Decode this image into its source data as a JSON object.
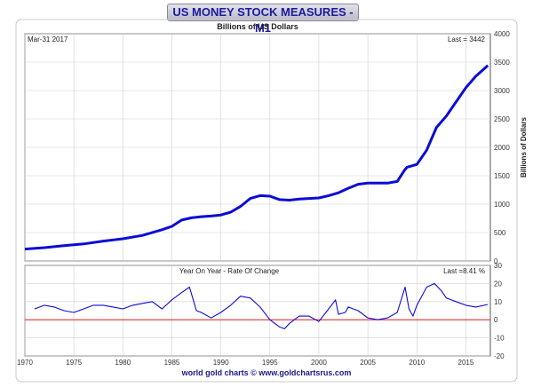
{
  "title": "US MONEY STOCK MEASURES - M1",
  "footer": "world gold charts © www.goldchartsrus.com",
  "colors": {
    "line": "#0b0bd6",
    "zero_line": "#e11a1a",
    "grid": "#d0d0d0",
    "axis_text": "#333333"
  },
  "chart_data": [
    {
      "type": "line",
      "subtitle": "Billions of US Dollars",
      "date_label": "Mar-31  2017",
      "last_label": "Last = 3442",
      "ylabel": "Billions of Dollars",
      "xlim": [
        1970,
        2017.5
      ],
      "ylim": [
        0,
        4000
      ],
      "yticks": [
        0,
        500,
        1000,
        1500,
        2000,
        2500,
        3000,
        3500,
        4000
      ],
      "grid": true,
      "series": [
        {
          "x": [
            1970,
            1972,
            1974,
            1976,
            1978,
            1980,
            1982,
            1984,
            1985,
            1986,
            1987,
            1988,
            1989,
            1990,
            1991,
            1992,
            1993,
            1994,
            1995,
            1996,
            1997,
            1998,
            1999,
            2000,
            2001,
            2002,
            2003,
            2004,
            2005,
            2006,
            2007,
            2008,
            2008.75,
            2009,
            2010,
            2011,
            2011.5,
            2012,
            2013,
            2014,
            2015,
            2016,
            2017.25
          ],
          "values": [
            210,
            235,
            270,
            300,
            350,
            390,
            450,
            550,
            610,
            720,
            760,
            780,
            790,
            810,
            860,
            960,
            1100,
            1150,
            1140,
            1080,
            1070,
            1090,
            1100,
            1110,
            1150,
            1200,
            1280,
            1350,
            1370,
            1370,
            1370,
            1400,
            1600,
            1650,
            1700,
            1950,
            2150,
            2350,
            2550,
            2800,
            3050,
            3250,
            3442
          ]
        }
      ]
    },
    {
      "type": "line",
      "subtitle": "Year On Year - Rate Of Change",
      "last_label": "Last =8.41 %",
      "xlim": [
        1970,
        2017.5
      ],
      "ylim": [
        -20,
        30
      ],
      "yticks": [
        -20,
        -10,
        0,
        10,
        20,
        30
      ],
      "xticks": [
        1970,
        1975,
        1980,
        1985,
        1990,
        1995,
        2000,
        2005,
        2010,
        2015
      ],
      "grid": true,
      "series": [
        {
          "x": [
            1971,
            1972,
            1973,
            1974,
            1975,
            1976,
            1977,
            1978,
            1979,
            1980,
            1981,
            1982,
            1983,
            1984,
            1985,
            1986,
            1986.8,
            1987.5,
            1988,
            1989,
            1990,
            1991,
            1992,
            1993,
            1994,
            1995,
            1996,
            1996.5,
            1997,
            1998,
            1999,
            2000,
            2001,
            2001.7,
            2002,
            2002.7,
            2003,
            2004,
            2005,
            2006,
            2007,
            2008,
            2008.8,
            2009.2,
            2009.6,
            2010,
            2011,
            2011.8,
            2012.5,
            2013,
            2014,
            2015,
            2016,
            2017.25
          ],
          "values": [
            6,
            8,
            7,
            5,
            4,
            6,
            8,
            8,
            7,
            6,
            8,
            9,
            10,
            6,
            11,
            15,
            18,
            5,
            4,
            1,
            4,
            8,
            13,
            12,
            7,
            0,
            -4,
            -5,
            -2,
            2,
            2,
            -1,
            6,
            11,
            3,
            4,
            7,
            5,
            1,
            0,
            1,
            4,
            18,
            6,
            2,
            8,
            18,
            20,
            16,
            12,
            10,
            8,
            7,
            8.41
          ]
        }
      ]
    }
  ]
}
